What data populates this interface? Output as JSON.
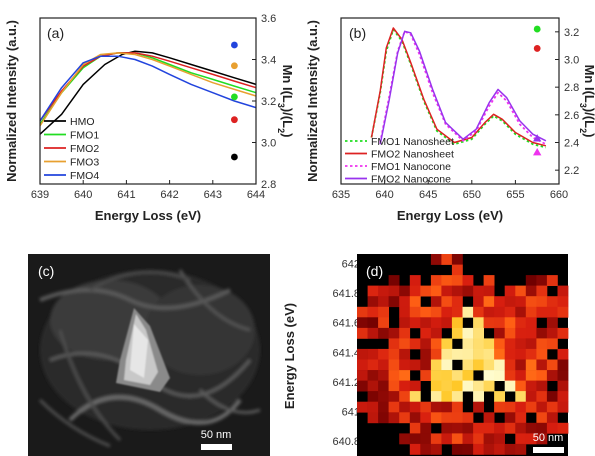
{
  "chart_data": [
    {
      "type": "line",
      "panel_label": "(a)",
      "xlabel": "Energy Loss (eV)",
      "ylabel": "Normalized Intensity (a.u.)",
      "y2label": "Mn I(L3)/(L2)",
      "xlim": [
        639,
        644
      ],
      "xticks": [
        639,
        640,
        641,
        642,
        643,
        644
      ],
      "y2lim": [
        2.8,
        3.6
      ],
      "y2ticks": [
        2.8,
        3.0,
        3.2,
        3.4,
        3.6
      ],
      "legend_position": "bottom-left",
      "series": [
        {
          "name": "HMO",
          "color": "#000000",
          "x": [
            639,
            639.5,
            640,
            640.5,
            640.9,
            641.2,
            641.6,
            642,
            642.5,
            643,
            643.5,
            644
          ],
          "y": [
            0.3,
            0.42,
            0.6,
            0.72,
            0.78,
            0.8,
            0.79,
            0.76,
            0.72,
            0.68,
            0.64,
            0.6
          ]
        },
        {
          "name": "FMO1",
          "color": "#22dd22",
          "x": [
            639,
            639.5,
            640,
            640.4,
            640.8,
            641.2,
            641.6,
            642,
            642.5,
            643,
            643.5,
            644
          ],
          "y": [
            0.36,
            0.55,
            0.7,
            0.77,
            0.79,
            0.79,
            0.76,
            0.72,
            0.67,
            0.63,
            0.59,
            0.55
          ]
        },
        {
          "name": "FMO2",
          "color": "#dd2222",
          "x": [
            639,
            639.5,
            640,
            640.4,
            640.8,
            641.2,
            641.6,
            642,
            642.5,
            643,
            643.5,
            644
          ],
          "y": [
            0.38,
            0.56,
            0.71,
            0.77,
            0.79,
            0.79,
            0.77,
            0.74,
            0.7,
            0.66,
            0.62,
            0.58
          ]
        },
        {
          "name": "FMO3",
          "color": "#e8a030",
          "x": [
            639,
            639.5,
            640,
            640.4,
            640.8,
            641.2,
            641.6,
            642,
            642.5,
            643,
            643.5,
            644
          ],
          "y": [
            0.35,
            0.55,
            0.72,
            0.78,
            0.79,
            0.78,
            0.75,
            0.71,
            0.66,
            0.61,
            0.57,
            0.53
          ]
        },
        {
          "name": "FMO4",
          "color": "#2244dd",
          "x": [
            639,
            639.5,
            640,
            640.4,
            640.8,
            641.2,
            641.6,
            642,
            642.5,
            643,
            643.5,
            644
          ],
          "y": [
            0.38,
            0.58,
            0.73,
            0.77,
            0.77,
            0.75,
            0.71,
            0.66,
            0.6,
            0.55,
            0.5,
            0.46
          ]
        }
      ],
      "ratio_points": [
        {
          "series": "FMO4",
          "color": "#2244dd",
          "y": 3.47
        },
        {
          "series": "FMO3",
          "color": "#e8a030",
          "y": 3.37
        },
        {
          "series": "FMO1",
          "color": "#22dd22",
          "y": 3.22
        },
        {
          "series": "FMO2",
          "color": "#dd2222",
          "y": 3.11
        },
        {
          "series": "HMO",
          "color": "#000000",
          "y": 2.93
        }
      ]
    },
    {
      "type": "line",
      "panel_label": "(b)",
      "xlabel": "Energy Loss (eV)",
      "ylabel": "Normalized Intensity (a.u.)",
      "y2label": "Mn I(L3)/(L2)",
      "xlim": [
        635,
        660
      ],
      "xticks": [
        635,
        640,
        645,
        650,
        655,
        660
      ],
      "y2lim": [
        2.1,
        3.3
      ],
      "y2ticks": [
        2.2,
        2.4,
        2.6,
        2.8,
        3.0,
        3.2
      ],
      "legend_position": "bottom-left",
      "series": [
        {
          "name": "FMO1 Nanosheet",
          "color": "#22dd22",
          "dash": "dotted",
          "x": [
            638.5,
            639.5,
            640.2,
            641.0,
            642.0,
            643.0,
            644.5,
            646.0,
            648.0,
            650.0,
            651.5,
            652.5,
            653.5,
            655.0,
            657.0,
            658.5
          ],
          "y": [
            0.28,
            0.55,
            0.8,
            0.93,
            0.86,
            0.72,
            0.5,
            0.32,
            0.24,
            0.27,
            0.36,
            0.41,
            0.38,
            0.3,
            0.24,
            0.22
          ]
        },
        {
          "name": "FMO2 Nanosheet",
          "color": "#dd2222",
          "dash": "solid",
          "x": [
            638.5,
            639.5,
            640.2,
            641.0,
            642.0,
            643.0,
            644.5,
            646.0,
            648.0,
            650.0,
            651.5,
            652.5,
            653.5,
            655.0,
            657.0,
            658.5
          ],
          "y": [
            0.28,
            0.56,
            0.82,
            0.94,
            0.87,
            0.73,
            0.51,
            0.33,
            0.25,
            0.28,
            0.37,
            0.42,
            0.39,
            0.31,
            0.25,
            0.23
          ]
        },
        {
          "name": "FMO1 Nanocone",
          "color": "#ee33ee",
          "dash": "dotted",
          "x": [
            639.5,
            640.5,
            641.5,
            642.3,
            643.0,
            644.0,
            645.5,
            647.0,
            649.0,
            650.5,
            652.0,
            653.0,
            654.0,
            655.5,
            657.0,
            658.5
          ],
          "y": [
            0.25,
            0.52,
            0.8,
            0.92,
            0.9,
            0.78,
            0.55,
            0.36,
            0.26,
            0.32,
            0.47,
            0.55,
            0.5,
            0.36,
            0.28,
            0.24
          ]
        },
        {
          "name": "FMO2 Nanocone",
          "color": "#9933ee",
          "dash": "solid",
          "x": [
            639.5,
            640.5,
            641.5,
            642.3,
            643.0,
            644.0,
            645.5,
            647.0,
            649.0,
            650.5,
            652.0,
            653.0,
            654.0,
            655.5,
            657.0,
            658.5
          ],
          "y": [
            0.24,
            0.5,
            0.79,
            0.92,
            0.91,
            0.8,
            0.57,
            0.37,
            0.27,
            0.33,
            0.49,
            0.57,
            0.52,
            0.38,
            0.3,
            0.26
          ]
        }
      ],
      "ratio_points": [
        {
          "series": "FMO1 Nanosheet",
          "color": "#22dd22",
          "marker": "circle",
          "y": 3.22
        },
        {
          "series": "FMO2 Nanosheet",
          "color": "#dd2222",
          "marker": "circle",
          "y": 3.08
        },
        {
          "series": "FMO2 Nanocone",
          "color": "#9933ee",
          "marker": "triangle",
          "y": 2.43
        },
        {
          "series": "FMO1 Nanocone",
          "color": "#ee33ee",
          "marker": "triangle",
          "y": 2.33
        }
      ]
    },
    {
      "type": "heatmap",
      "panel_label": "(d)",
      "colorbar_label": "Energy Loss (eV)",
      "colorbar_ticks": [
        642,
        641.8,
        641.6,
        641.4,
        641.2,
        641,
        640.8
      ],
      "colorbar_range": [
        640.7,
        642.05
      ],
      "scale_bar": "50 nm"
    }
  ],
  "image_panel": {
    "label": "(c)",
    "scale_bar": "50 nm"
  },
  "labels": {
    "mn_ratio_prefix": "Mn I(L",
    "mn_ratio_mid": ")/(L",
    "mn_ratio_suffix": ")",
    "sub3": "3",
    "sub2": "2"
  },
  "colors": {
    "heat_low": "#000000",
    "heat_mid": "#ee2a1a",
    "heat_high": "#ffffc8"
  }
}
